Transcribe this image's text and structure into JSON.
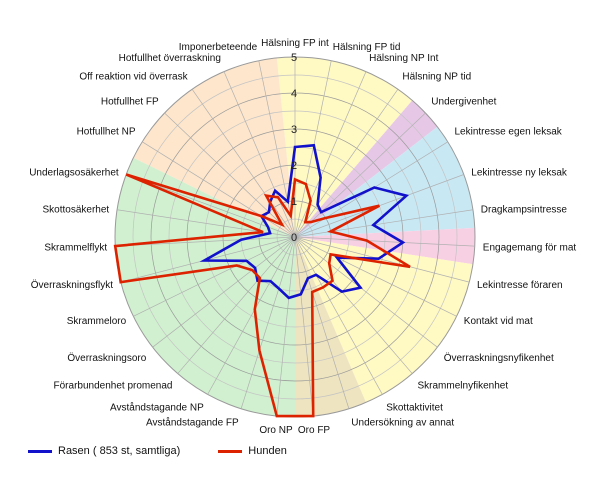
{
  "chart_data": {
    "type": "radar",
    "r_range": [
      0,
      5
    ],
    "r_ticks": [
      "0",
      "1",
      "2",
      "3",
      "4",
      "5"
    ],
    "categories": [
      "Hälsning FP int",
      "Hälsning FP tid",
      "Hälsning NP Int",
      "Hälsning NP tid",
      "Undergivenhet",
      "Lekintresse egen leksak",
      "Lekintresse ny leksak",
      "Dragkampsintresse",
      "Engagemang för mat",
      "Lekintresse föraren",
      "Kontakt vid mat",
      "Överraskningsnyfikenhet",
      "Skrammelnyfikenhet",
      "Skottaktivitet",
      "Undersökning av annat",
      "Oro FP",
      "Oro NP",
      "Avståndstagande FP",
      "Avståndstagande NP",
      "Förarbundenhet promenad",
      "Överraskningsoro",
      "Skrammeloro",
      "Överraskningsflykt",
      "Skrammelflykt",
      "Skottosäkerhet",
      "Underlagsosäkerhet",
      "Hotfullhet NP",
      "Hotfullhet FP",
      "Off reaktion vid överrask",
      "Hotfullhet överraskning",
      "Imponerbeteende"
    ],
    "series": [
      {
        "name": "Rasen ( 853 st, samtliga)",
        "color": "#1111cc",
        "values": [
          2.5,
          2.6,
          1.8,
          1.1,
          1.0,
          2.6,
          3.3,
          2.2,
          3.0,
          2.4,
          1.3,
          2.3,
          2.0,
          1.2,
          1.2,
          1.6,
          1.7,
          1.5,
          1.4,
          1.6,
          1.4,
          1.5,
          2.6,
          1.5,
          0.7,
          0.8,
          1.1,
          1.0,
          1.2,
          1.4,
          1.0
        ]
      },
      {
        "name": "Hunden",
        "color": "#dd2200",
        "values": [
          1.6,
          1.5,
          1.1,
          0.5,
          0.6,
          1.0,
          2.5,
          1.0,
          2.0,
          3.3,
          1.1,
          1.2,
          1.6,
          1.6,
          1.6,
          5.0,
          5.0,
          3.3,
          2.3,
          1.5,
          1.5,
          1.8,
          5.0,
          5.0,
          0.9,
          5.0,
          1.1,
          0.5,
          1.4,
          1.2,
          0.6
        ]
      }
    ],
    "sectors": [
      {
        "from": 0,
        "to": 3,
        "color": "#fff9c4"
      },
      {
        "from": 4,
        "to": 4,
        "color": "#e6c8e6"
      },
      {
        "from": 5,
        "to": 7,
        "color": "#c8e8f4"
      },
      {
        "from": 8,
        "to": 8,
        "color": "#f8d0e4"
      },
      {
        "from": 9,
        "to": 13,
        "color": "#fff9c4"
      },
      {
        "from": 14,
        "to": 15,
        "color": "#eee4c0"
      },
      {
        "from": 16,
        "to": 25,
        "color": "#d0f0d0"
      },
      {
        "from": 26,
        "to": 30,
        "color": "#fde6cc"
      }
    ],
    "legend_position": "bottom-left",
    "grid": true
  }
}
